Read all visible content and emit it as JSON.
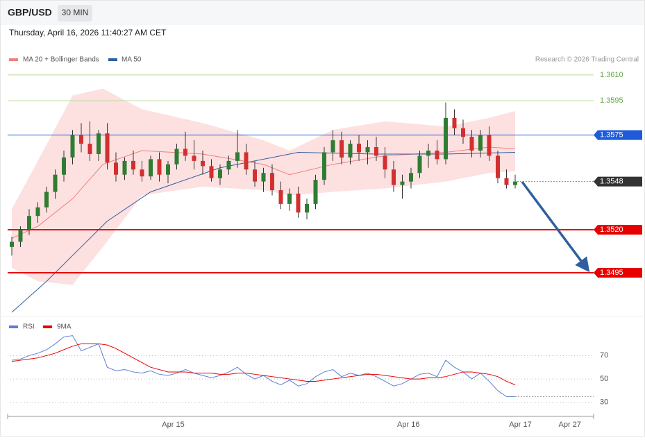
{
  "header": {
    "symbol": "GBP/USD",
    "interval": "30 MIN",
    "timestamp": "Thursday, April 16, 2026 11:40:27 AM CET"
  },
  "chart_data": [
    {
      "type": "candlestick",
      "credit": "Research © 2026 Trading Central",
      "ylim": [
        1.347,
        1.3639
      ],
      "up_color": "#2e7d32",
      "down_color": "#d32f2f",
      "candles": [
        [
          1.351,
          1.3516,
          1.3505,
          1.3513
        ],
        [
          1.3513,
          1.3522,
          1.351,
          1.352
        ],
        [
          1.352,
          1.3532,
          1.3517,
          1.3528
        ],
        [
          1.3528,
          1.3536,
          1.3524,
          1.3533
        ],
        [
          1.3533,
          1.3545,
          1.353,
          1.3542
        ],
        [
          1.3542,
          1.3555,
          1.3538,
          1.3552
        ],
        [
          1.3552,
          1.3566,
          1.3548,
          1.3562
        ],
        [
          1.3562,
          1.3578,
          1.3558,
          1.3575
        ],
        [
          1.3575,
          1.3582,
          1.3565,
          1.357
        ],
        [
          1.357,
          1.3583,
          1.356,
          1.3564
        ],
        [
          1.3564,
          1.3578,
          1.356,
          1.3576
        ],
        [
          1.3576,
          1.3582,
          1.3555,
          1.3559
        ],
        [
          1.3559,
          1.3565,
          1.3548,
          1.3552
        ],
        [
          1.3552,
          1.3562,
          1.3549,
          1.356
        ],
        [
          1.356,
          1.3566,
          1.3552,
          1.3555
        ],
        [
          1.3555,
          1.356,
          1.3548,
          1.3551
        ],
        [
          1.3551,
          1.3563,
          1.3549,
          1.3561
        ],
        [
          1.3561,
          1.3565,
          1.3548,
          1.3552
        ],
        [
          1.3552,
          1.356,
          1.3547,
          1.3558
        ],
        [
          1.3558,
          1.357,
          1.3555,
          1.3567
        ],
        [
          1.3567,
          1.3577,
          1.356,
          1.3563
        ],
        [
          1.3563,
          1.3572,
          1.3555,
          1.356
        ],
        [
          1.356,
          1.3566,
          1.3552,
          1.3557
        ],
        [
          1.3557,
          1.3561,
          1.3548,
          1.355
        ],
        [
          1.355,
          1.3558,
          1.3546,
          1.3555
        ],
        [
          1.3555,
          1.3563,
          1.3552,
          1.356
        ],
        [
          1.356,
          1.3578,
          1.3556,
          1.3565
        ],
        [
          1.3565,
          1.357,
          1.3552,
          1.3555
        ],
        [
          1.3555,
          1.356,
          1.3545,
          1.3548
        ],
        [
          1.3548,
          1.3556,
          1.3542,
          1.3553
        ],
        [
          1.3553,
          1.3558,
          1.354,
          1.3543
        ],
        [
          1.3543,
          1.3548,
          1.3532,
          1.3535
        ],
        [
          1.3535,
          1.3544,
          1.3531,
          1.3541
        ],
        [
          1.3541,
          1.3545,
          1.3527,
          1.353
        ],
        [
          1.353,
          1.3538,
          1.3526,
          1.3535
        ],
        [
          1.3535,
          1.3552,
          1.3532,
          1.3549
        ],
        [
          1.3549,
          1.3568,
          1.3546,
          1.3565
        ],
        [
          1.3565,
          1.3578,
          1.356,
          1.3572
        ],
        [
          1.3572,
          1.3577,
          1.3558,
          1.3562
        ],
        [
          1.3562,
          1.3572,
          1.3558,
          1.357
        ],
        [
          1.357,
          1.3575,
          1.356,
          1.3565
        ],
        [
          1.3565,
          1.3572,
          1.3558,
          1.3568
        ],
        [
          1.3568,
          1.3574,
          1.356,
          1.3563
        ],
        [
          1.3563,
          1.3568,
          1.355,
          1.3555
        ],
        [
          1.3555,
          1.356,
          1.3542,
          1.3546
        ],
        [
          1.3546,
          1.3552,
          1.3538,
          1.3548
        ],
        [
          1.3548,
          1.3556,
          1.3544,
          1.3553
        ],
        [
          1.3553,
          1.3566,
          1.355,
          1.3563
        ],
        [
          1.3563,
          1.357,
          1.3556,
          1.3566
        ],
        [
          1.3566,
          1.3572,
          1.3558,
          1.3561
        ],
        [
          1.3561,
          1.3594,
          1.3558,
          1.3585
        ],
        [
          1.3585,
          1.359,
          1.3575,
          1.3579
        ],
        [
          1.3579,
          1.3584,
          1.357,
          1.3574
        ],
        [
          1.3574,
          1.3578,
          1.3562,
          1.3566
        ],
        [
          1.3566,
          1.3578,
          1.3562,
          1.3575
        ],
        [
          1.3575,
          1.358,
          1.356,
          1.3563
        ],
        [
          1.3563,
          1.3566,
          1.3547,
          1.355
        ],
        [
          1.355,
          1.3555,
          1.3544,
          1.3546
        ],
        [
          1.3546,
          1.3552,
          1.3544,
          1.3548
        ]
      ],
      "bands": {
        "name": "MA 20 + Bollinger Bands",
        "color": "#f08080",
        "fill": "#fdd8d8",
        "x": [
          0,
          3,
          7,
          10.5,
          15,
          22,
          29,
          32,
          37,
          43,
          50,
          55,
          58
        ],
        "upper": [
          1.3532,
          1.356,
          1.3598,
          1.3602,
          1.359,
          1.3582,
          1.3572,
          1.3566,
          1.3578,
          1.3583,
          1.358,
          1.3585,
          1.3589
        ],
        "lower": [
          1.3498,
          1.349,
          1.3488,
          1.351,
          1.354,
          1.3545,
          1.3543,
          1.354,
          1.3542,
          1.3544,
          1.3548,
          1.3553,
          1.3554
        ],
        "ma20": [
          1.3515,
          1.3522,
          1.3538,
          1.3558,
          1.3566,
          1.3564,
          1.3558,
          1.3552,
          1.3558,
          1.3563,
          1.3565,
          1.3568,
          1.3567
        ]
      },
      "ma50": {
        "name": "MA 50",
        "color": "#2f5f9e",
        "x": [
          0,
          4,
          8,
          11,
          16,
          24,
          33,
          42,
          50,
          58
        ],
        "values": [
          1.3472,
          1.349,
          1.351,
          1.3525,
          1.3542,
          1.3556,
          1.3565,
          1.3564,
          1.3564,
          1.3565
        ]
      },
      "levels": [
        {
          "value": 1.361,
          "label": "1.3610",
          "color": "#6aa84f",
          "line": "#b9dc9f",
          "style": "solid",
          "box": false
        },
        {
          "value": 1.3595,
          "label": "1.3595",
          "color": "#6aa84f",
          "line": "#b9dc9f",
          "style": "solid",
          "box": false
        },
        {
          "value": 1.3575,
          "label": "1.3575",
          "color": "#1e5bd8",
          "line": "#1e5bd8",
          "style": "solid",
          "box": true
        },
        {
          "value": 1.3548,
          "label": "1.3548",
          "color": "#333333",
          "line": "#888888",
          "style": "dotted",
          "box": true
        },
        {
          "value": 1.352,
          "label": "1.3520",
          "color": "#e60000",
          "line": "#e60000",
          "style": "bold",
          "box": true
        },
        {
          "value": 1.3495,
          "label": "1.3495",
          "color": "#e60000",
          "line": "#e60000",
          "style": "bold",
          "box": true
        }
      ],
      "xlabels": [
        {
          "value": 18.6,
          "label": "Apr 15"
        },
        {
          "value": 45.7,
          "label": "Apr 16"
        },
        {
          "value": 58.6,
          "label": "Apr 17"
        },
        {
          "value": 64.3,
          "label": "Apr 27"
        }
      ]
    },
    {
      "type": "line",
      "ylim": [
        21,
        101
      ],
      "yticks": [
        70,
        50,
        30
      ],
      "series": [
        {
          "name": "RSI",
          "color": "#5b7fd6",
          "values": [
            66,
            67,
            70,
            72,
            75,
            80,
            86,
            87,
            74,
            77,
            80,
            60,
            57,
            58,
            56,
            55,
            57,
            54,
            53,
            55,
            58,
            55,
            53,
            51,
            53,
            56,
            60,
            54,
            50,
            53,
            48,
            45,
            49,
            44,
            46,
            52,
            56,
            58,
            52,
            55,
            53,
            55,
            52,
            48,
            44,
            46,
            50,
            54,
            55,
            52,
            66,
            60,
            56,
            50,
            55,
            48,
            40,
            35,
            35
          ]
        },
        {
          "name": "9MA",
          "color": "#e60000",
          "values": [
            65,
            66,
            67,
            68,
            70,
            72,
            75,
            78,
            80,
            80,
            80,
            79,
            76,
            72,
            68,
            64,
            60,
            58,
            56,
            56,
            56,
            55,
            55,
            55,
            54,
            54,
            55,
            55,
            54,
            53,
            52,
            51,
            50,
            49,
            48,
            48,
            49,
            50,
            51,
            52,
            53,
            54,
            54,
            53,
            52,
            51,
            50,
            50,
            51,
            51,
            52,
            54,
            56,
            56,
            55,
            54,
            52,
            48,
            45
          ]
        }
      ]
    }
  ]
}
